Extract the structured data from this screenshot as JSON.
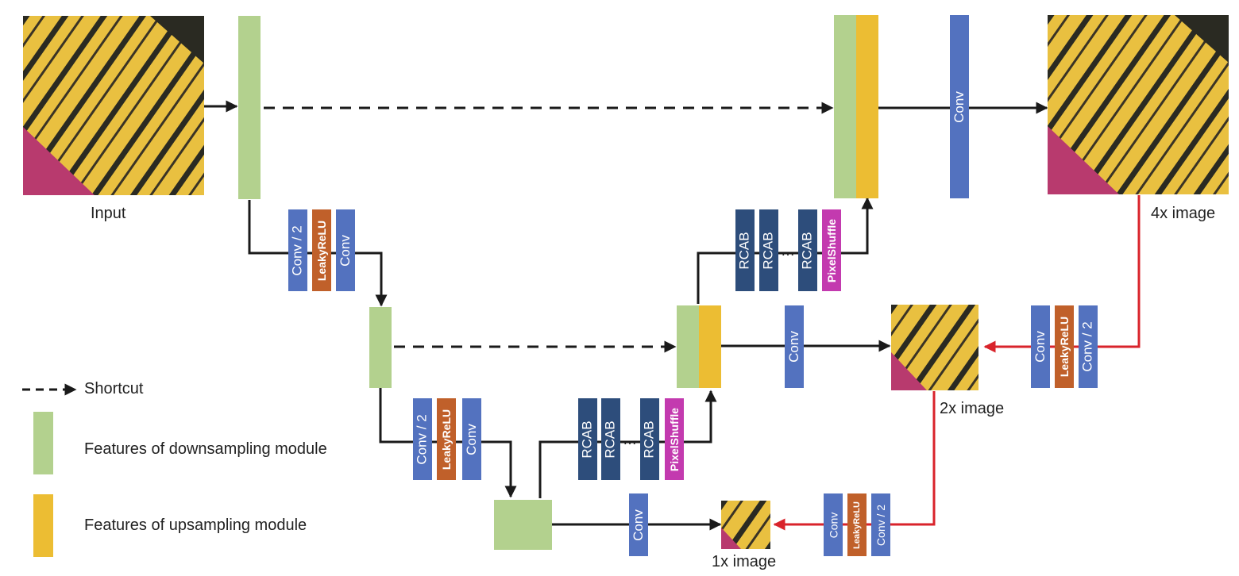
{
  "labels": {
    "input": "Input",
    "out4x": "4x image",
    "out2x": "2x image",
    "out1x": "1x image"
  },
  "legend": {
    "shortcut": "Shortcut",
    "down": "Features of downsampling module",
    "up": "Features of upsampling module"
  },
  "blocks": {
    "conv": "Conv",
    "conv2": "Conv / 2",
    "leaky": "LeakyReLU",
    "rcab": "RCAB",
    "pixel": "PixelShuffle",
    "dots": "…"
  },
  "colors": {
    "down": "#b3d18e",
    "up": "#ecbd33",
    "conv": "#5372bf",
    "rcab": "#2d4d7b",
    "leaky": "#c0602a",
    "pixel": "#c33aaf",
    "arrow": "#1a1a1a",
    "red": "#d9232b"
  }
}
